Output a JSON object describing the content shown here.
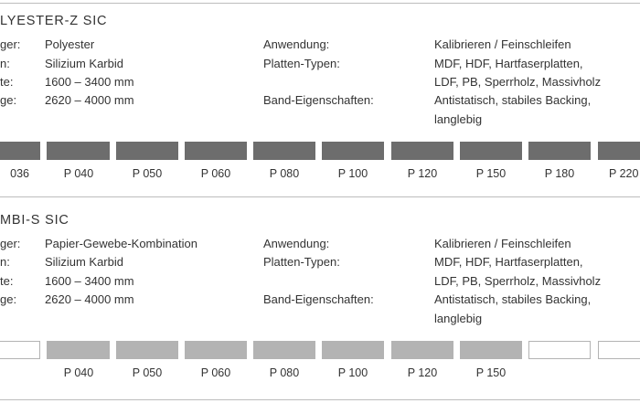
{
  "sections": [
    {
      "title": "LYESTER-Z SIC",
      "rows": [
        {
          "label": "ger:",
          "value": "Polyester",
          "key": "Anwendung:",
          "val": "Kalibrieren / Feinschleifen"
        },
        {
          "label": "n:",
          "value": "Silizium Karbid",
          "key": "Platten-Typen:",
          "val": "MDF, HDF, Hartfaserplatten,"
        },
        {
          "label": "te:",
          "value": "1600 – 3400 mm",
          "key": "",
          "val": "LDF, PB, Sperrholz, Massivholz"
        },
        {
          "label": "ge:",
          "value": "2620 – 4000 mm",
          "key": "Band-Eigenschaften:",
          "val": "Antistatisch, stabiles Backing,"
        },
        {
          "label": "",
          "value": "",
          "key": "",
          "val": "langlebig"
        }
      ],
      "grits": [
        "036",
        "P 040",
        "P 050",
        "P 060",
        "P 080",
        "P 100",
        "P 120",
        "P 150",
        "P 180",
        "P 220"
      ]
    },
    {
      "title": "MBI-S SIC",
      "rows": [
        {
          "label": "ger:",
          "value": "Papier-Gewebe-Kombination",
          "key": "Anwendung:",
          "val": "Kalibrieren / Feinschleifen"
        },
        {
          "label": "n:",
          "value": "Silizium Karbid",
          "key": "Platten-Typen:",
          "val": "MDF, HDF, Hartfaserplatten,"
        },
        {
          "label": "te:",
          "value": "1600 – 3400 mm",
          "key": "",
          "val": "LDF, PB, Sperrholz, Massivholz"
        },
        {
          "label": "ge:",
          "value": "2620 – 4000 mm",
          "key": "Band-Eigenschaften:",
          "val": "Antistatisch, stabiles Backing,"
        },
        {
          "label": "",
          "value": "",
          "key": "",
          "val": "langlebig"
        }
      ],
      "grits": [
        "",
        "P 040",
        "P 050",
        "P 060",
        "P 080",
        "P 100",
        "P 120",
        "P 150",
        "",
        ""
      ]
    }
  ]
}
